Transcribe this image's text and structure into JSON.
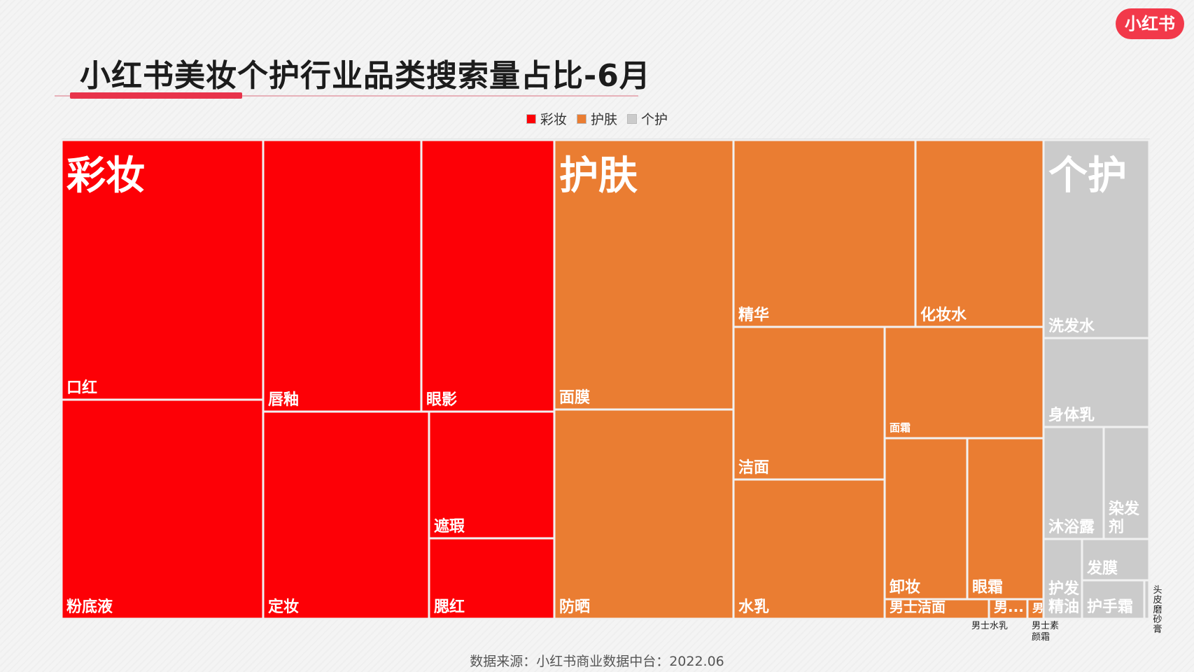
{
  "header": {
    "title": "小红书美妆个护行业品类搜索量占比-6月",
    "logo_text": "小红书"
  },
  "legend": [
    {
      "label": "彩妆",
      "color": "#fd0006"
    },
    {
      "label": "护肤",
      "color": "#ea7d32"
    },
    {
      "label": "个护",
      "color": "#cbcbcb"
    }
  ],
  "chart_data": {
    "type": "treemap",
    "title": "小红书美妆个护行业品类搜索量占比-6月",
    "groups": [
      {
        "name": "彩妆",
        "color": "#fd0006",
        "items": [
          {
            "name": "口红",
            "value": 8.95
          },
          {
            "name": "粉底液",
            "value": 7.45
          },
          {
            "name": "唇釉",
            "value": 4.67
          },
          {
            "name": "眼影",
            "value": 3.93
          },
          {
            "name": "定妆",
            "value": 3.76
          },
          {
            "name": "遮瑕",
            "value": 2.09
          },
          {
            "name": "腮红",
            "value": 1.34
          }
        ]
      },
      {
        "name": "护肤",
        "color": "#ea7d32",
        "items": [
          {
            "name": "面膜",
            "value": 6.47
          },
          {
            "name": "防晒",
            "value": 5.03
          },
          {
            "name": "精华",
            "value": 4.28
          },
          {
            "name": "化妆水",
            "value": 3.01
          },
          {
            "name": "洁面",
            "value": 2.71
          },
          {
            "name": "水乳",
            "value": 2.33
          },
          {
            "name": "面霜",
            "value": 1.79
          },
          {
            "name": "卸妆",
            "value": 1.6
          },
          {
            "name": "眼霜",
            "value": 1.42
          },
          {
            "name": "男士洁面",
            "value": 0.42
          },
          {
            "name": "男士水乳",
            "value": 0.18
          },
          {
            "name": "男士素颜霜",
            "value": 0.07
          }
        ]
      },
      {
        "name": "个护",
        "color": "#cbcbcb",
        "items": [
          {
            "name": "洗发水",
            "value": 3.55
          },
          {
            "name": "身体乳",
            "value": 1.58
          },
          {
            "name": "沐浴露",
            "value": 1.37
          },
          {
            "name": "染发剂",
            "value": 0.87
          },
          {
            "name": "护发精油",
            "value": 0.84
          },
          {
            "name": "发膜",
            "value": 0.51
          },
          {
            "name": "护手霜",
            "value": 0.49
          },
          {
            "name": "头皮磨砂膏",
            "value": 0.09
          }
        ]
      }
    ]
  },
  "tile_text": {
    "男士水乳": "男...",
    "男士素颜霜": "男"
  },
  "callouts": {
    "men_lotion": "男士水乳",
    "men_bb_1": "男士素",
    "men_bb_2": "颜霜",
    "scalp_scrub": "头皮磨砂膏"
  },
  "footer": {
    "source": "数据来源：小红书商业数据中台：2022.06"
  }
}
